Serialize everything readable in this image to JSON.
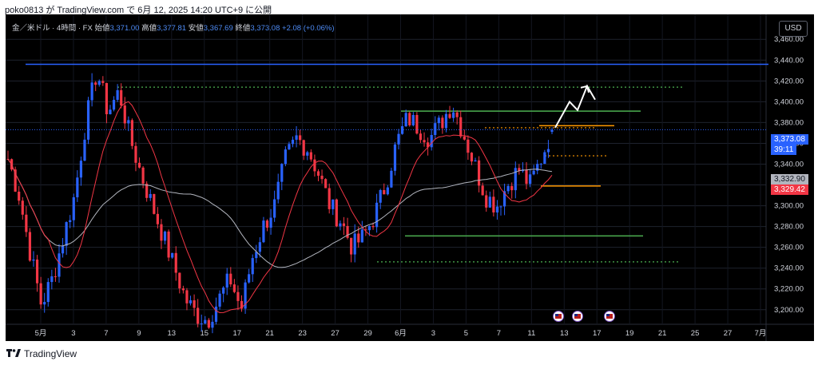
{
  "header": {
    "publish_line": "poko0813 が TradingView.com で 6月 12, 2025 14:20 UTC+9 に公開"
  },
  "legend": {
    "symbol": "金／米ドル · 4時間 · FX",
    "open_label": "始値",
    "open_value": "3,371.00",
    "high_label": "高値",
    "high_value": "3,377.81",
    "low_label": "安値",
    "low_value": "3,367.69",
    "close_label": "終値",
    "close_value": "3,373.08",
    "change": "+2.08 (+0.06%)"
  },
  "currency_button": "USD",
  "price_tags": {
    "last_price": "3,373.08",
    "countdown": "39:11",
    "ma_long": "3,332.90",
    "ma_short": "3,329.42"
  },
  "footer": {
    "brand": "TradingView",
    "logo": "tv-logo"
  },
  "colors": {
    "background": "#000000",
    "up_candle": "#2962ff",
    "down_candle": "#f23645",
    "ma_short": "#f23645",
    "ma_long": "#b2b5be",
    "resistance_blue": "#2962ff",
    "level_green": "#4caf50",
    "level_orange": "#ff9800",
    "forecast_arrow": "#ffffff"
  },
  "chart_data": {
    "type": "candlestick",
    "title": "金／米ドル · 4時間 · FX",
    "y_ticks": [
      3200,
      3220,
      3240,
      3260,
      3280,
      3300,
      3320,
      3340,
      3360,
      3380,
      3400,
      3420,
      3440,
      3460
    ],
    "ylim": [
      3186,
      3484
    ],
    "x_ticks": [
      "5月",
      "3",
      "7",
      "9",
      "13",
      "15",
      "17",
      "21",
      "23",
      "27",
      "29",
      "6月",
      "3",
      "5",
      "7",
      "11",
      "13",
      "17",
      "19",
      "21",
      "25",
      "27",
      "7月"
    ],
    "last_price": 3373.08,
    "ohlc_last": {
      "open": 3371.0,
      "high": 3377.81,
      "low": 3367.69,
      "close": 3373.08
    },
    "series": [
      {
        "name": "MA short",
        "last_value": 3329.42
      },
      {
        "name": "MA long",
        "last_value": 3332.9
      }
    ],
    "price_path": [
      3345,
      3310,
      3255,
      3205,
      3230,
      3270,
      3310,
      3380,
      3430,
      3390,
      3410,
      3365,
      3330,
      3300,
      3270,
      3240,
      3210,
      3195,
      3190,
      3210,
      3230,
      3200,
      3250,
      3280,
      3300,
      3345,
      3365,
      3355,
      3330,
      3300,
      3285,
      3260,
      3270,
      3290,
      3320,
      3360,
      3385,
      3375,
      3365,
      3380,
      3398,
      3370,
      3340,
      3310,
      3300,
      3320,
      3335,
      3320,
      3345,
      3373
    ],
    "levels": [
      {
        "type": "solid",
        "color": "blue",
        "value": 3436
      },
      {
        "type": "dotted",
        "color": "green",
        "value": 3414
      },
      {
        "type": "solid",
        "color": "green",
        "value": 3391
      },
      {
        "type": "solid",
        "color": "orange",
        "value": 3377
      },
      {
        "type": "dotted",
        "color": "orange",
        "value": 3375
      },
      {
        "type": "dotted",
        "color": "orange",
        "value": 3348
      },
      {
        "type": "solid",
        "color": "orange",
        "value": 3319
      },
      {
        "type": "solid",
        "color": "green",
        "value": 3271
      },
      {
        "type": "dotted",
        "color": "green",
        "value": 3246
      }
    ],
    "forecast": [
      3375,
      3400,
      3392,
      3415,
      3402
    ],
    "events": 3
  }
}
